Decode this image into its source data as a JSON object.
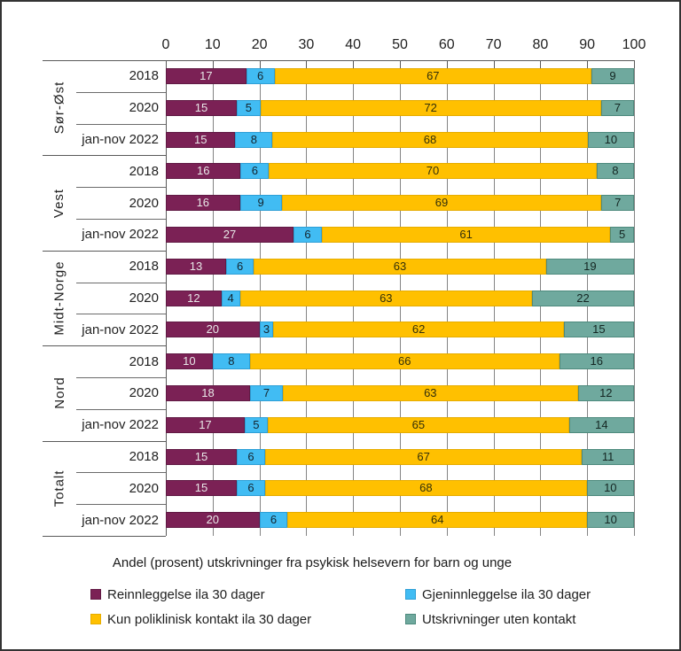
{
  "frame": {
    "border_color": "#333333",
    "background": "#ffffff"
  },
  "chart_data": {
    "type": "bar",
    "variant": "100-percent-stacked-horizontal",
    "title": "Andel (prosent) utskrivninger fra psykisk helsevern for barn og unge",
    "xlabel": "",
    "ylabel": "",
    "grid": true,
    "legend_position": "bottom",
    "axis": {
      "min": 0,
      "max": 100,
      "step": 10,
      "ticks": [
        0,
        10,
        20,
        30,
        40,
        50,
        60,
        70,
        80,
        90,
        100
      ],
      "position": "top"
    },
    "series": [
      {
        "name": "Reinnleggelse ila 30 dager",
        "color": "#7B2155",
        "border_color": "#611A44",
        "label_color": "#e8e8e8"
      },
      {
        "name": "Gjeninnleggelse ila 30 dager",
        "color": "#41BCF3",
        "border_color": "#2E9FD6",
        "label_color": "#14242e"
      },
      {
        "name": "Kun poliklinisk kontakt ila 30 dager",
        "color": "#FFC000",
        "border_color": "#E6AC00",
        "label_color": "#33300a"
      },
      {
        "name": "Utskrivninger uten kontakt",
        "color": "#6FA99E",
        "border_color": "#4D8A7D",
        "label_color": "#142622"
      }
    ],
    "groups": [
      {
        "region": "Sør-Øst",
        "rows": [
          {
            "label": "2018",
            "values": [
              17,
              6,
              67,
              9
            ]
          },
          {
            "label": "2020",
            "values": [
              15,
              5,
              72,
              7
            ]
          },
          {
            "label": "jan-nov 2022",
            "values": [
              15,
              8,
              68,
              10
            ]
          }
        ]
      },
      {
        "region": "Vest",
        "rows": [
          {
            "label": "2018",
            "values": [
              16,
              6,
              70,
              8
            ]
          },
          {
            "label": "2020",
            "values": [
              16,
              9,
              69,
              7
            ]
          },
          {
            "label": "jan-nov 2022",
            "values": [
              27,
              6,
              61,
              5
            ]
          }
        ]
      },
      {
        "region": "Midt-Norge",
        "rows": [
          {
            "label": "2018",
            "values": [
              13,
              6,
              63,
              19
            ]
          },
          {
            "label": "2020",
            "values": [
              12,
              4,
              63,
              22
            ]
          },
          {
            "label": "jan-nov 2022",
            "values": [
              20,
              3,
              62,
              15
            ]
          }
        ]
      },
      {
        "region": "Nord",
        "rows": [
          {
            "label": "2018",
            "values": [
              10,
              8,
              66,
              16
            ]
          },
          {
            "label": "2020",
            "values": [
              18,
              7,
              63,
              12
            ]
          },
          {
            "label": "jan-nov 2022",
            "values": [
              17,
              5,
              65,
              14
            ]
          }
        ]
      },
      {
        "region": "Totalt",
        "rows": [
          {
            "label": "2018",
            "values": [
              15,
              6,
              67,
              11
            ]
          },
          {
            "label": "2020",
            "values": [
              15,
              6,
              68,
              10
            ]
          },
          {
            "label": "jan-nov 2022",
            "values": [
              20,
              6,
              64,
              10
            ]
          }
        ]
      }
    ]
  }
}
